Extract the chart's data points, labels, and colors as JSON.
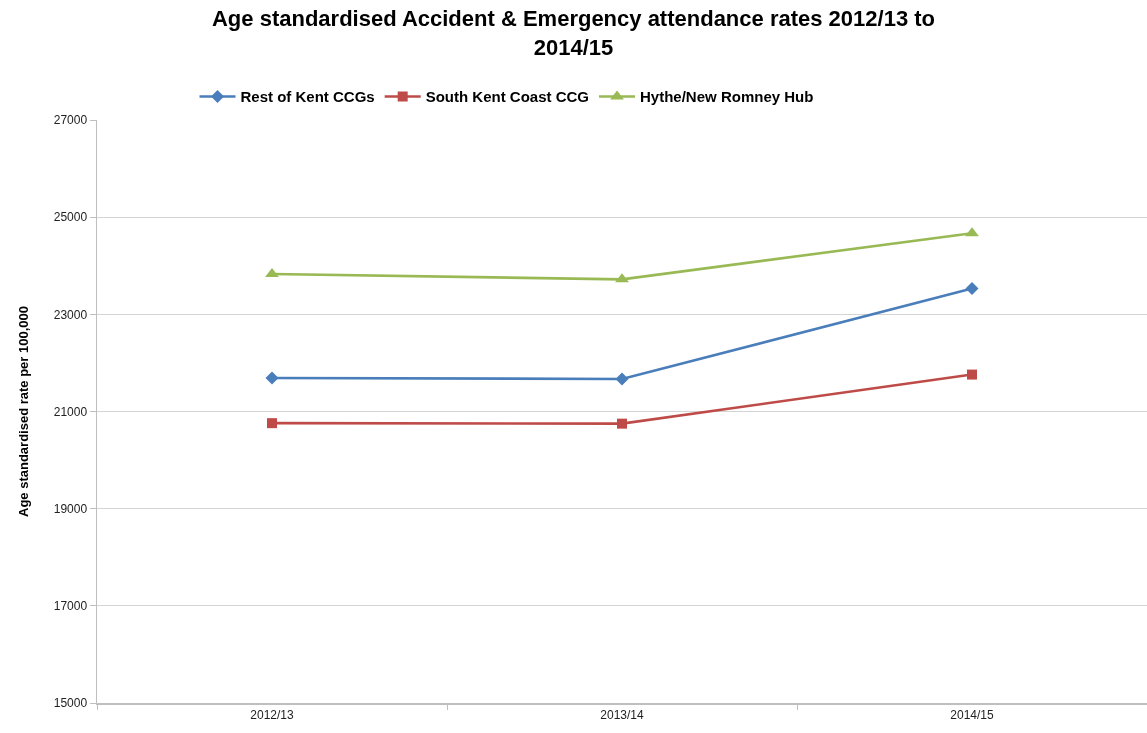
{
  "chart_data": {
    "type": "line",
    "title": "Age standardised Accident & Emergency attendance rates 2012/13 to 2014/15",
    "ylabel": "Age standardised rate per 100,000",
    "categories": [
      "2012/13",
      "2013/14",
      "2014/15"
    ],
    "series": [
      {
        "name": "Rest of Kent CCGs",
        "color": "#4a7ebb",
        "marker": "diamond",
        "values": [
          21690,
          21670,
          23530
        ]
      },
      {
        "name": "South Kent Coast CCG",
        "color": "#be4b48",
        "marker": "square",
        "values": [
          20760,
          20750,
          21760
        ]
      },
      {
        "name": "Hythe/New Romney Hub",
        "color": "#98b954",
        "marker": "triangle",
        "values": [
          23830,
          23720,
          24670
        ]
      }
    ],
    "ylim": [
      15000,
      27000
    ],
    "yticks": [
      15000,
      17000,
      19000,
      21000,
      23000,
      25000,
      27000
    ],
    "grid": "y",
    "legend": "top",
    "line_style": "solid"
  }
}
